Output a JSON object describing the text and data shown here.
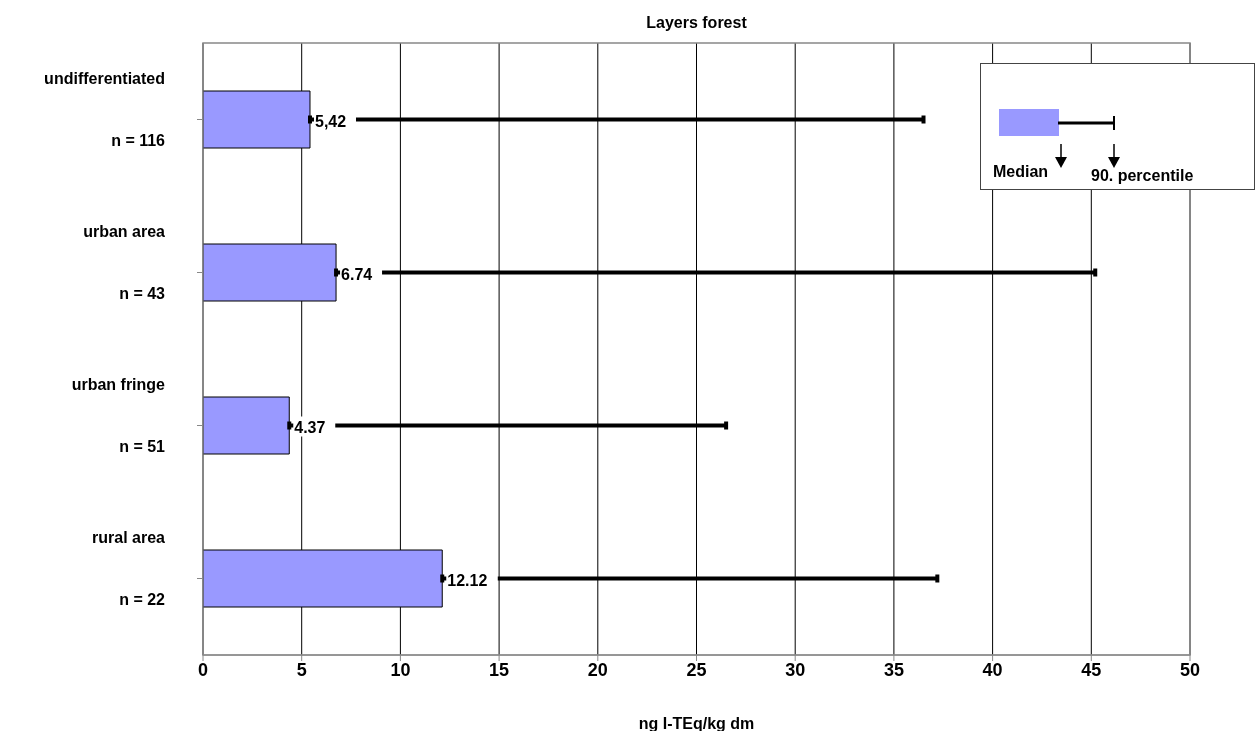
{
  "chart_data": {
    "type": "bar",
    "orientation": "horizontal",
    "title": "Layers forest",
    "xlabel": "ng I-TEq/kg dm",
    "categories": [
      "undifferentiated\nn = 116",
      "urban area\nn = 43",
      "urban fringe\nn = 51",
      "rural area\nn = 22"
    ],
    "series": [
      {
        "name": "Median",
        "color": "#9999ff",
        "values": [
          5.42,
          6.74,
          4.37,
          12.12
        ],
        "errors": [
          [
            5.42,
            36.5
          ],
          [
            6.74,
            45.2
          ],
          [
            4.37,
            26.5
          ],
          [
            12.12,
            37.2
          ]
        ],
        "value_labels": [
          "5,42",
          "6.74",
          "4.37",
          "12.12"
        ]
      }
    ],
    "annotations": [
      "90. percentile"
    ],
    "xlim": [
      0,
      50
    ],
    "xticks": [
      0,
      5,
      10,
      15,
      20,
      25,
      30,
      35,
      40,
      45,
      50
    ],
    "grid": "x",
    "legend": "top right"
  }
}
